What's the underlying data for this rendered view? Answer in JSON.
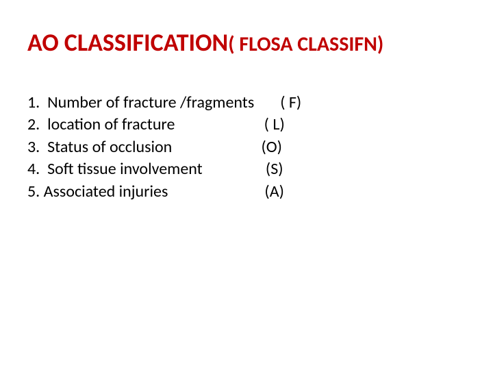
{
  "title": {
    "main": "AO CLASSIFICATION",
    "sub": "( FLOSA CLASSIFN)",
    "main_color": "#c00000",
    "sub_color": "#c00000",
    "main_fontsize": 36,
    "sub_fontsize": 30,
    "font_weight": 700
  },
  "list": {
    "text_color": "#000000",
    "fontsize": 24,
    "font_weight": 400,
    "items": [
      {
        "num": "1.",
        "text": "  Number of fracture /fragments",
        "code": "       ( F)"
      },
      {
        "num": "2.",
        "text": "  location of fracture",
        "code": "                        ( L)"
      },
      {
        "num": "3.",
        "text": "  Status of occlusion",
        "code": "                        (O)"
      },
      {
        "num": "4.",
        "text": "  Soft tissue involvement",
        "code": "                 (S)"
      },
      {
        "num": "5.",
        "text": " Associated injuries",
        "code": "                          (A)"
      }
    ]
  },
  "background_color": "#ffffff"
}
